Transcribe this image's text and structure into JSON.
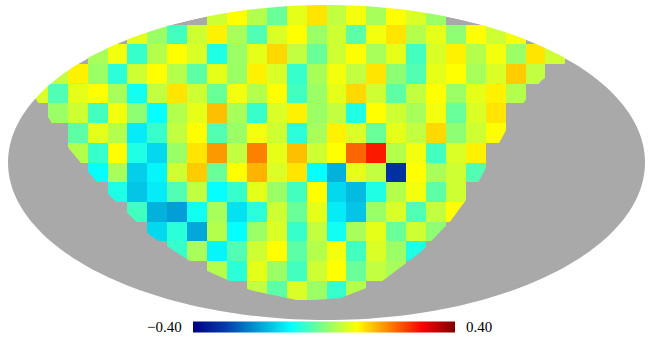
{
  "chart_data": {
    "type": "heatmap",
    "color": "Jet",
    "tick_labels": false,
    "xlim": [
      -2,
      2
    ],
    "ylim": [
      -1,
      1
    ],
    "z": [
      [
        null,
        null,
        null,
        null,
        null,
        null,
        null,
        null,
        null,
        null,
        0.06,
        0.1,
        0.04,
        -0.02,
        0.08,
        0.12,
        0.05,
        0.09,
        0.03,
        0.1,
        0.07,
        0.02,
        null,
        null,
        null,
        null,
        null,
        null,
        null,
        null,
        null,
        null
      ],
      [
        null,
        null,
        null,
        null,
        null,
        null,
        0.08,
        0.02,
        -0.05,
        0.06,
        0.11,
        0.03,
        -0.04,
        0.07,
        0.1,
        0.02,
        0.06,
        -0.03,
        0.09,
        0.12,
        0.04,
        0.08,
        0.01,
        0.1,
        0.06,
        0.09,
        null,
        null,
        null,
        null,
        null,
        null
      ],
      [
        null,
        null,
        null,
        null,
        0.03,
        0.09,
        -0.06,
        0.04,
        0.1,
        0.07,
        -0.08,
        0.02,
        0.08,
        0.13,
        0.05,
        -0.02,
        0.06,
        0.1,
        0.03,
        0.08,
        -0.05,
        0.07,
        0.11,
        0.04,
        0.09,
        0.02,
        0.12,
        0.06,
        null,
        null,
        null,
        null
      ],
      [
        null,
        null,
        0.05,
        0.11,
        0.02,
        -0.07,
        0.06,
        0.1,
        0.04,
        -0.03,
        0.08,
        0.02,
        0.11,
        0.07,
        -0.06,
        0.03,
        0.09,
        0.05,
        0.12,
        0.01,
        -0.04,
        0.08,
        0.1,
        0.03,
        0.07,
        0.14,
        0.05,
        null,
        null,
        null,
        null,
        null
      ],
      [
        null,
        0.07,
        -0.04,
        0.08,
        0.1,
        0.03,
        -0.09,
        0.05,
        0.12,
        0.06,
        -0.02,
        0.09,
        0.04,
        0.1,
        -0.05,
        0.02,
        0.08,
        0.13,
        0.06,
        -0.03,
        0.05,
        0.1,
        0.02,
        0.08,
        0.11,
        0.04,
        null,
        null,
        null,
        null,
        null,
        null
      ],
      [
        null,
        null,
        0.02,
        0.06,
        -0.05,
        0.09,
        0.01,
        -0.1,
        0.04,
        0.08,
        0.15,
        0.03,
        -0.06,
        0.07,
        0.11,
        0.02,
        0.05,
        -0.08,
        0.1,
        0.06,
        0.03,
        0.09,
        -0.02,
        0.07,
        0.12,
        null,
        null,
        null,
        null,
        null,
        null,
        null
      ],
      [
        null,
        null,
        null,
        -0.03,
        0.08,
        0.04,
        -0.12,
        -0.06,
        0.05,
        0.1,
        -0.04,
        0.02,
        0.09,
        0.06,
        -0.07,
        0.03,
        0.11,
        0.07,
        -0.02,
        0.08,
        0.05,
        0.13,
        0.01,
        0.06,
        0.1,
        null,
        null,
        null,
        null,
        null,
        null,
        null
      ],
      [
        null,
        null,
        null,
        0.04,
        -0.06,
        0.1,
        -0.08,
        -0.14,
        0.02,
        0.12,
        0.18,
        0.05,
        0.2,
        0.08,
        0.15,
        0.06,
        0.1,
        0.22,
        0.28,
        0.04,
        0.09,
        -0.05,
        0.07,
        0.11,
        null,
        null,
        null,
        null,
        null,
        null,
        null,
        null
      ],
      [
        null,
        null,
        null,
        null,
        -0.1,
        0.03,
        -0.15,
        -0.11,
        0.06,
        0.14,
        -0.02,
        0.1,
        0.16,
        0.07,
        0.12,
        -0.1,
        -0.18,
        0.08,
        0.05,
        -0.32,
        0.1,
        0.03,
        0.06,
        -0.04,
        null,
        null,
        null,
        null,
        null,
        null,
        null,
        null
      ],
      [
        null,
        null,
        null,
        null,
        null,
        -0.08,
        -0.16,
        -0.12,
        -0.04,
        0.05,
        -0.1,
        -0.06,
        0.08,
        0.02,
        -0.05,
        0.1,
        -0.14,
        -0.17,
        -0.08,
        0.04,
        0.09,
        -0.03,
        0.06,
        null,
        null,
        null,
        null,
        null,
        null,
        null,
        null,
        null
      ],
      [
        null,
        null,
        null,
        null,
        null,
        null,
        -0.05,
        -0.18,
        -0.2,
        -0.09,
        0.03,
        -0.13,
        -0.07,
        0.06,
        -0.02,
        0.08,
        -0.12,
        -0.16,
        0.02,
        0.07,
        -0.04,
        0.05,
        0.1,
        null,
        null,
        null,
        null,
        null,
        null,
        null,
        null,
        null
      ],
      [
        null,
        null,
        null,
        null,
        null,
        null,
        null,
        -0.14,
        -0.07,
        -0.19,
        0.04,
        -0.1,
        0.02,
        0.07,
        -0.06,
        0.05,
        -0.09,
        0.03,
        0.08,
        -0.02,
        0.06,
        0.01,
        null,
        null,
        null,
        null,
        null,
        null,
        null,
        null,
        null,
        null
      ],
      [
        null,
        null,
        null,
        null,
        null,
        null,
        null,
        null,
        -0.06,
        0.03,
        -0.11,
        -0.04,
        0.06,
        0.1,
        -0.03,
        0.04,
        0.09,
        -0.05,
        0.07,
        0.02,
        -0.08,
        null,
        null,
        null,
        null,
        null,
        null,
        null,
        null,
        null,
        null,
        null
      ],
      [
        null,
        null,
        null,
        null,
        null,
        null,
        null,
        null,
        null,
        null,
        0.04,
        -0.07,
        0.08,
        0.02,
        -0.05,
        0.06,
        0.1,
        -0.02,
        0.05,
        0.03,
        null,
        null,
        null,
        null,
        null,
        null,
        null,
        null,
        null,
        null,
        null,
        null
      ],
      [
        null,
        null,
        null,
        null,
        null,
        null,
        null,
        null,
        null,
        null,
        null,
        null,
        0.05,
        -0.03,
        0.07,
        0.02,
        -0.06,
        0.04,
        null,
        null,
        null,
        null,
        null,
        null,
        null,
        null,
        null,
        null,
        null,
        null,
        null,
        null
      ],
      [
        null,
        null,
        null,
        null,
        null,
        null,
        null,
        null,
        null,
        null,
        null,
        null,
        null,
        null,
        null,
        null,
        null,
        null,
        null,
        null,
        null,
        null,
        null,
        null,
        null,
        null,
        null,
        null,
        null,
        null,
        null,
        null
      ]
    ],
    "mask": [
      [
        -1.83,
        0.41
      ],
      [
        -1.61,
        0.08
      ],
      [
        -1.42,
        -0.15
      ],
      [
        -1.11,
        -0.46
      ],
      [
        -0.79,
        -0.67
      ],
      [
        -0.48,
        -0.81
      ],
      [
        -0.16,
        -0.88
      ],
      [
        0.09,
        -0.86
      ],
      [
        0.34,
        -0.76
      ],
      [
        0.59,
        -0.57
      ],
      [
        0.78,
        -0.37
      ],
      [
        0.94,
        -0.15
      ],
      [
        1.06,
        0.08
      ],
      [
        1.19,
        0.32
      ],
      [
        1.35,
        0.52
      ],
      [
        1.5,
        0.63
      ],
      [
        1.69,
        0.66
      ],
      [
        1.85,
        0.63
      ],
      [
        2.01,
        0.52
      ]
    ],
    "colorbar": {
      "range": [
        -0.4,
        0.4
      ],
      "ticks": [
        {
          "value": -0.4,
          "label": "−0.40"
        },
        {
          "value": 0.4,
          "label": "0.40"
        }
      ]
    }
  }
}
